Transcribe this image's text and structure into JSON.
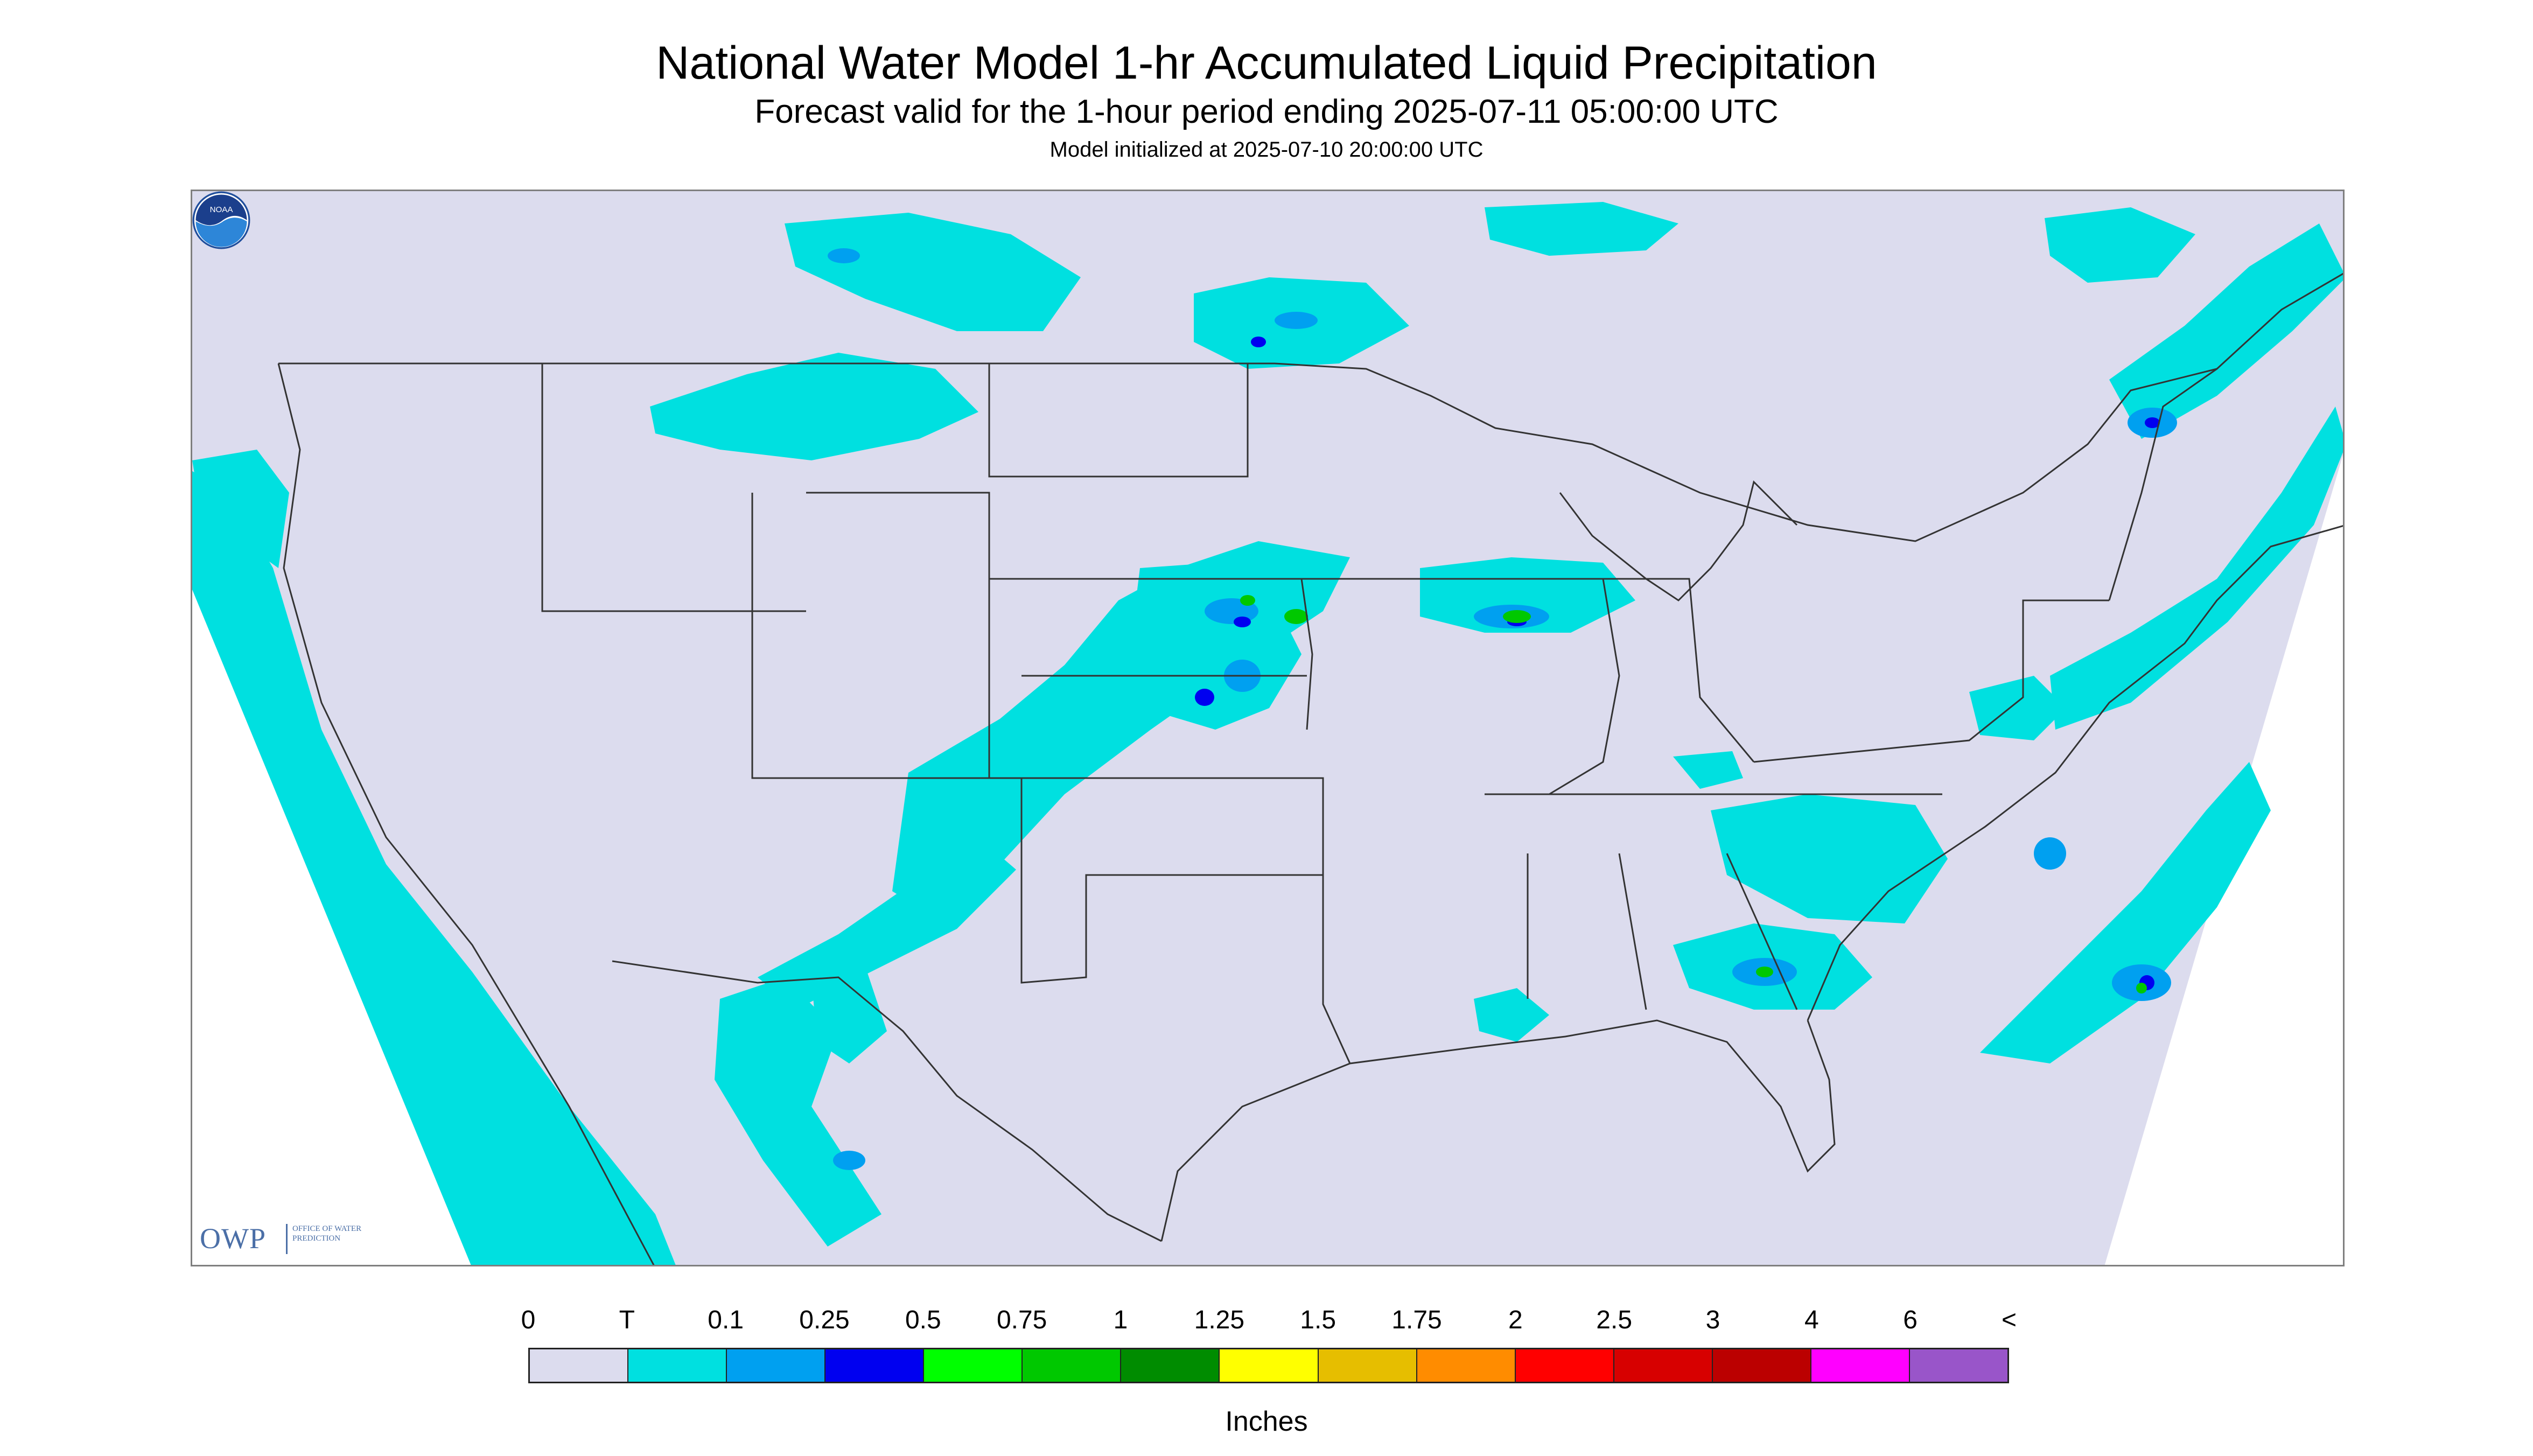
{
  "title": "National Water Model 1-hr Accumulated Liquid Precipitation",
  "subtitle": "Forecast valid for the 1-hour period ending 2025-07-11 05:00:00 UTC",
  "init_line": "Model initialized at 2025-07-10 20:00:00 UTC",
  "logos": {
    "owp_abbrev": "OWP",
    "owp_text": "OFFICE OF WATER PREDICTION",
    "noaa_text": "NOAA"
  },
  "legend": {
    "labels": [
      "0",
      "T",
      "0.1",
      "0.25",
      "0.5",
      "0.75",
      "1",
      "1.25",
      "1.5",
      "1.75",
      "2",
      "2.5",
      "3",
      "4",
      "6",
      "<"
    ],
    "colors": [
      "#dcdcee",
      "#00e0e0",
      "#00a0f0",
      "#0000f0",
      "#00ff00",
      "#00c800",
      "#008c00",
      "#ffff00",
      "#e6be00",
      "#ff8c00",
      "#ff0000",
      "#d70000",
      "#bb0000",
      "#ff00ff",
      "#9955c9"
    ],
    "units": "Inches"
  },
  "colors": {
    "domain_background": "#dcdcee",
    "trace": "#00e0e0",
    "light": "#00a0f0",
    "moderate": "#0000f0",
    "heavy": "#00c800",
    "boundaries": "#333333"
  }
}
